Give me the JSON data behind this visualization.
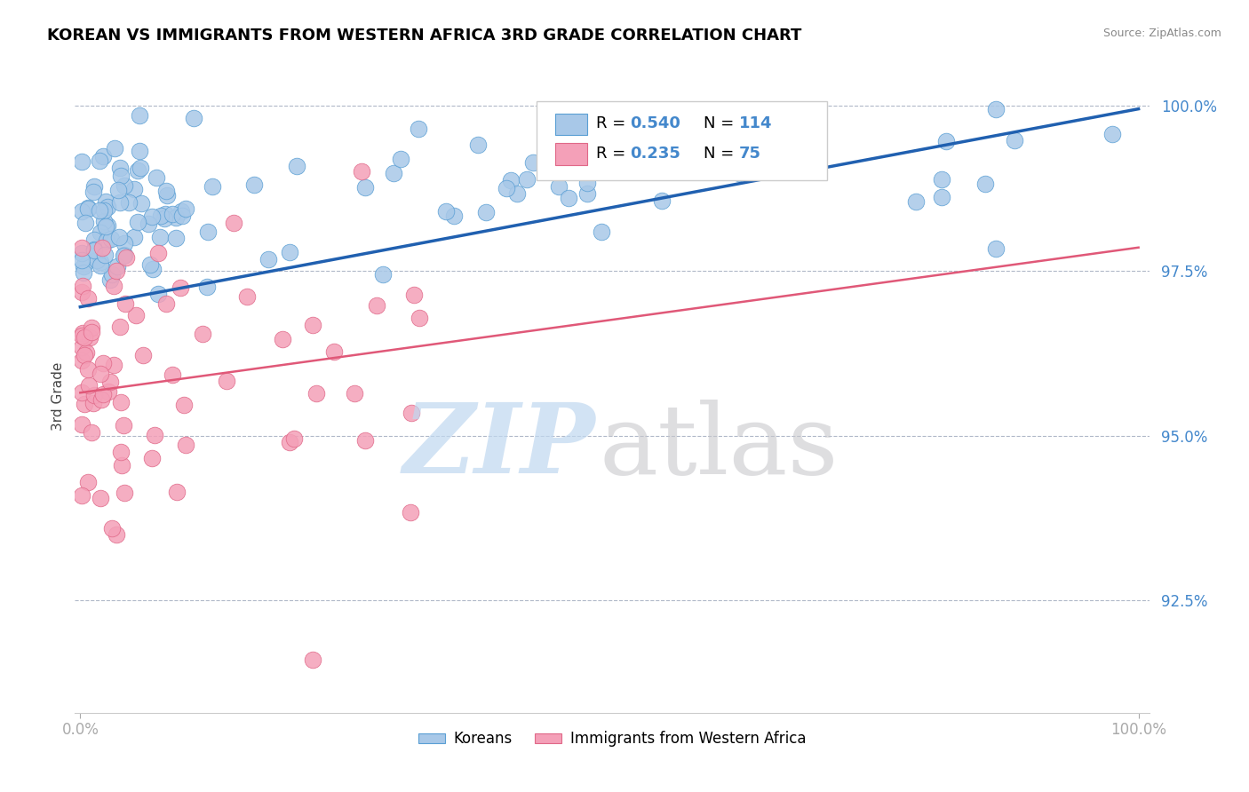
{
  "title": "KOREAN VS IMMIGRANTS FROM WESTERN AFRICA 3RD GRADE CORRELATION CHART",
  "source": "Source: ZipAtlas.com",
  "ylabel": "3rd Grade",
  "blue_color": "#a8c8e8",
  "blue_edge_color": "#5a9fd4",
  "pink_color": "#f4a0b8",
  "pink_edge_color": "#e06888",
  "blue_line_color": "#2060b0",
  "pink_line_color": "#e05878",
  "axis_label_color": "#4488cc",
  "title_fontsize": 13,
  "legend_fontsize": 13,
  "watermark_zip_color": "#c0d8f0",
  "watermark_atlas_color": "#c8c8cc"
}
